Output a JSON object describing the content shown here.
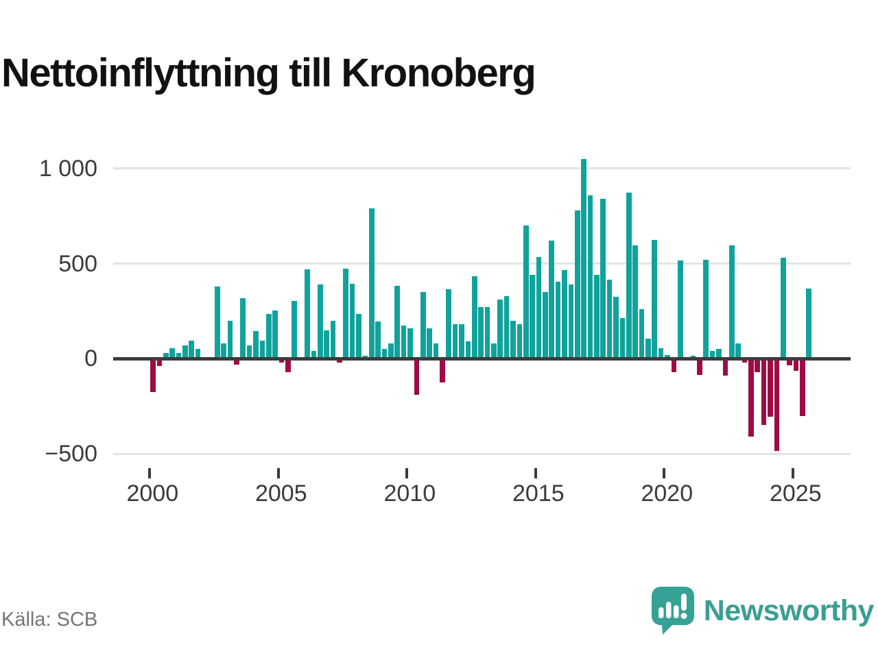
{
  "title": "Nettoinflyttning till Kronoberg",
  "source": "Källa: SCB",
  "brand": {
    "name": "Newsworthy",
    "color": "#3b9e93"
  },
  "colors": {
    "positive": "#0fa39c",
    "negative": "#a00b45",
    "grid": "#e4e4e4",
    "zero_axis": "#3c3c3c",
    "axis_text": "#3a3a3a",
    "muted_text": "#757575"
  },
  "chart_data": {
    "type": "bar",
    "title": "Nettoinflyttning till Kronoberg",
    "x_unit": "quarter",
    "grid": true,
    "legend": false,
    "ylim": [
      -500,
      1050
    ],
    "yticks": [
      {
        "value": 1000,
        "label": "1 000"
      },
      {
        "value": 500,
        "label": "500"
      },
      {
        "value": 0,
        "label": "0"
      },
      {
        "value": -500,
        "label": "−500"
      }
    ],
    "xticks": [
      {
        "value": 2000,
        "label": "2000"
      },
      {
        "value": 2005,
        "label": "2005"
      },
      {
        "value": 2010,
        "label": "2010"
      },
      {
        "value": 2015,
        "label": "2015"
      },
      {
        "value": 2020,
        "label": "2020"
      },
      {
        "value": 2025,
        "label": "2025"
      }
    ],
    "categories": [
      "2000 Q1",
      "2000 Q2",
      "2000 Q3",
      "2000 Q4",
      "2001 Q1",
      "2001 Q2",
      "2001 Q3",
      "2001 Q4",
      "2002 Q1",
      "2002 Q2",
      "2002 Q3",
      "2002 Q4",
      "2003 Q1",
      "2003 Q2",
      "2003 Q3",
      "2003 Q4",
      "2004 Q1",
      "2004 Q2",
      "2004 Q3",
      "2004 Q4",
      "2005 Q1",
      "2005 Q2",
      "2005 Q3",
      "2005 Q4",
      "2006 Q1",
      "2006 Q2",
      "2006 Q3",
      "2006 Q4",
      "2007 Q1",
      "2007 Q2",
      "2007 Q3",
      "2007 Q4",
      "2008 Q1",
      "2008 Q2",
      "2008 Q3",
      "2008 Q4",
      "2009 Q1",
      "2009 Q2",
      "2009 Q3",
      "2009 Q4",
      "2010 Q1",
      "2010 Q2",
      "2010 Q3",
      "2010 Q4",
      "2011 Q1",
      "2011 Q2",
      "2011 Q3",
      "2011 Q4",
      "2012 Q1",
      "2012 Q2",
      "2012 Q3",
      "2012 Q4",
      "2013 Q1",
      "2013 Q2",
      "2013 Q3",
      "2013 Q4",
      "2014 Q1",
      "2014 Q2",
      "2014 Q3",
      "2014 Q4",
      "2015 Q1",
      "2015 Q2",
      "2015 Q3",
      "2015 Q4",
      "2016 Q1",
      "2016 Q2",
      "2016 Q3",
      "2016 Q4",
      "2017 Q1",
      "2017 Q2",
      "2017 Q3",
      "2017 Q4",
      "2018 Q1",
      "2018 Q2",
      "2018 Q3",
      "2018 Q4",
      "2019 Q1",
      "2019 Q2",
      "2019 Q3",
      "2019 Q4",
      "2020 Q1",
      "2020 Q2",
      "2020 Q3",
      "2020 Q4",
      "2021 Q1",
      "2021 Q2",
      "2021 Q3",
      "2021 Q4",
      "2022 Q1",
      "2022 Q2",
      "2022 Q3",
      "2022 Q4",
      "2023 Q1",
      "2023 Q2",
      "2023 Q3",
      "2023 Q4",
      "2024 Q1",
      "2024 Q2",
      "2024 Q3",
      "2024 Q4",
      "2025 Q1",
      "2025 Q2",
      "2025 Q3"
    ],
    "values": [
      -175,
      -40,
      30,
      55,
      30,
      70,
      95,
      50,
      10,
      0,
      380,
      80,
      200,
      -30,
      320,
      70,
      145,
      95,
      235,
      255,
      -20,
      -70,
      305,
      0,
      470,
      40,
      390,
      150,
      200,
      -20,
      475,
      395,
      235,
      15,
      790,
      195,
      50,
      80,
      385,
      175,
      160,
      -190,
      350,
      160,
      80,
      -125,
      365,
      180,
      180,
      90,
      435,
      270,
      270,
      80,
      310,
      330,
      200,
      180,
      700,
      440,
      535,
      350,
      620,
      405,
      465,
      390,
      780,
      1050,
      860,
      440,
      840,
      415,
      325,
      215,
      875,
      595,
      260,
      105,
      625,
      55,
      20,
      -70,
      515,
      0,
      15,
      -85,
      520,
      40,
      50,
      -90,
      595,
      80,
      -20,
      -410,
      -70,
      -350,
      -305,
      -485,
      530,
      -35,
      -65,
      -300,
      370
    ]
  }
}
